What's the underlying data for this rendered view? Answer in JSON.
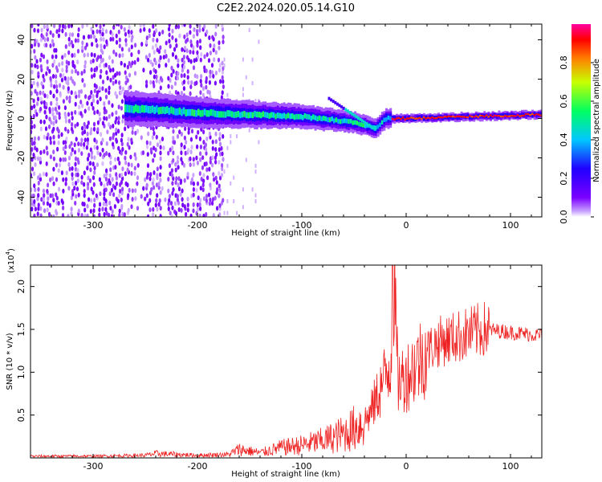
{
  "title": "C2E2.2024.020.05.14.G10",
  "chart_data": [
    {
      "type": "heatmap",
      "title": "C2E2.2024.020.05.14.G10",
      "xlabel": "Height of straight line (km)",
      "ylabel": "Frequency (Hz)",
      "xlim": [
        -360,
        130
      ],
      "ylim": [
        -50,
        48
      ],
      "x_ticks": [
        "-300",
        "-200",
        "-100",
        "0",
        "100"
      ],
      "y_ticks": [
        "40",
        "20",
        "0",
        "-20",
        "-40"
      ],
      "colorbar": {
        "label": "Normalized spectral amplitude",
        "range": [
          0.0,
          1.0
        ],
        "ticks": [
          "0.0",
          "0.2",
          "0.4",
          "0.6",
          "0.8"
        ],
        "colormap": [
          "#ffffff",
          "#c8a0ff",
          "#7a00ff",
          "#2000ff",
          "#00c8ff",
          "#00ff60",
          "#c8ff00",
          "#ff8000",
          "#ff0000",
          "#ff00a0"
        ]
      },
      "features": {
        "noise_region_x": [
          -360,
          -175
        ],
        "signal_band_center_hz": [
          {
            "x": -260,
            "f": 5
          },
          {
            "x": -200,
            "f": 3
          },
          {
            "x": -150,
            "f": 2
          },
          {
            "x": -100,
            "f": 1
          },
          {
            "x": -50,
            "f": -2
          },
          {
            "x": -30,
            "f": -5
          },
          {
            "x": -20,
            "f": 0
          },
          {
            "x": 0,
            "f": 0
          },
          {
            "x": 60,
            "f": 1
          },
          {
            "x": 130,
            "f": 2
          }
        ]
      }
    },
    {
      "type": "line",
      "xlabel": "Height of straight line (km)",
      "ylabel": "SNR (10 * v/v)",
      "y_multiplier": "(x10",
      "y_multiplier_exp": "4",
      "xlim": [
        -360,
        130
      ],
      "ylim": [
        0,
        2.25
      ],
      "x_ticks": [
        "-300",
        "-200",
        "-100",
        "0",
        "100"
      ],
      "y_ticks": [
        "2.0",
        "1.5",
        "1.0",
        "0.5"
      ],
      "series": [
        {
          "color": "#ee2222",
          "x": [
            -360,
            -300,
            -250,
            -240,
            -200,
            -170,
            -160,
            -140,
            -120,
            -100,
            -80,
            -60,
            -45,
            -35,
            -25,
            -15,
            -12,
            -8,
            0,
            10,
            20,
            30,
            45,
            60,
            75,
            90,
            105,
            120,
            130
          ],
          "y": [
            0.02,
            0.02,
            0.03,
            0.05,
            0.03,
            0.04,
            0.1,
            0.06,
            0.12,
            0.15,
            0.2,
            0.28,
            0.38,
            0.5,
            0.8,
            1.1,
            2.2,
            0.9,
            0.95,
            1.1,
            1.25,
            1.35,
            1.4,
            1.45,
            1.5,
            1.48,
            1.46,
            1.44,
            1.43
          ]
        }
      ]
    }
  ]
}
